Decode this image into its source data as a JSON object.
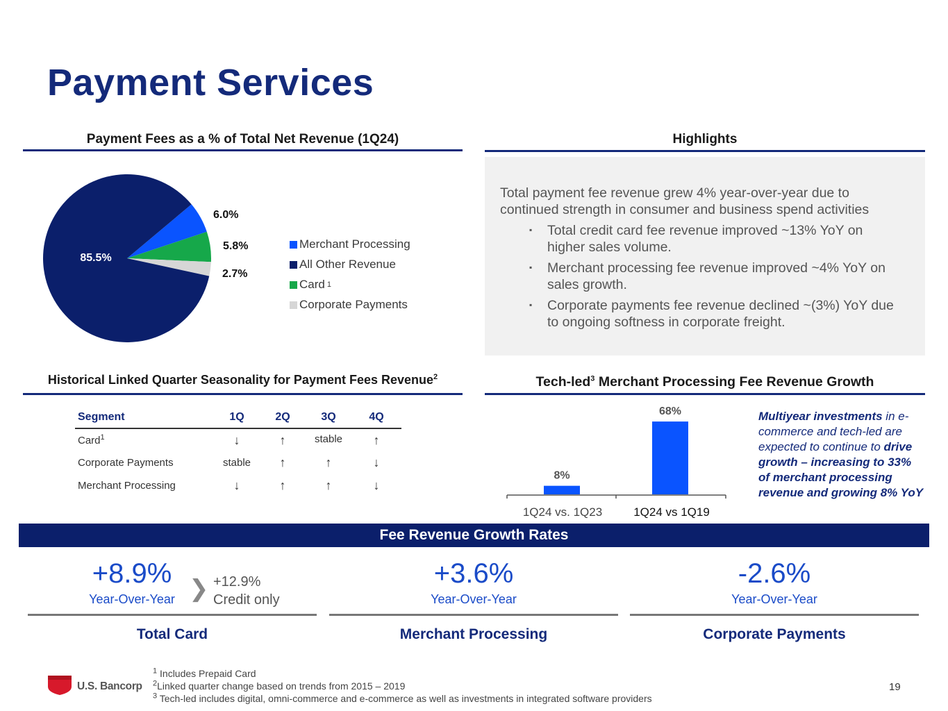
{
  "page": {
    "title": "Payment Services",
    "page_number": "19",
    "logo_text": "U.S. Bancorp"
  },
  "pie_section": {
    "heading": "Payment Fees as a % of Total Net Revenue (1Q24)"
  },
  "highlights": {
    "heading": "Highlights",
    "intro": [
      "Total payment fee revenue grew 4% year-over-year due to",
      "continued strength in consumer and business spend activities"
    ],
    "bullets": [
      [
        "Total credit card fee revenue improved ~13% YoY on",
        "higher sales volume."
      ],
      [
        "Merchant processing fee revenue improved ~4% YoY on",
        "sales growth."
      ],
      [
        "Corporate payments fee revenue declined ~(3%) YoY due",
        "to ongoing softness in corporate freight."
      ]
    ]
  },
  "seasonality": {
    "heading": "Historical Linked Quarter Seasonality for  Payment Fees Revenue",
    "heading_sup": "2",
    "columns": [
      "Segment",
      "1Q",
      "2Q",
      "3Q",
      "4Q"
    ],
    "rows": [
      {
        "segment": "Card",
        "sup": "1",
        "q1": "↓",
        "q2": "↑",
        "q3": "stable",
        "q4": "↑"
      },
      {
        "segment": "Corporate Payments",
        "sup": "",
        "q1": "stable",
        "q2": "↑",
        "q3": "↑",
        "q4": "↓"
      },
      {
        "segment": "Merchant Processing",
        "sup": "",
        "q1": "↓",
        "q2": "↑",
        "q3": "↑",
        "q4": "↓"
      }
    ]
  },
  "tech_section": {
    "heading_pre": "Tech-led",
    "heading_sup": "3",
    "heading_post": " Merchant Processing Fee Revenue Growth",
    "callout": {
      "p1_bold": "Multiyear investments",
      "p1_rest": " in e-commerce and tech-led are expected to continue to ",
      "p2_bold": "drive growth – increasing to 33% of merchant processing revenue and growing 8% YoY"
    }
  },
  "banner": {
    "label": "Fee Revenue Growth Rates"
  },
  "growth": {
    "card": {
      "value": "+8.9%",
      "yoy": "Year-Over-Year",
      "credit_value": "+12.9%",
      "credit_label": "Credit only",
      "name": "Total Card",
      "chevron": "❯"
    },
    "merchant": {
      "value": "+3.6%",
      "yoy": "Year-Over-Year",
      "name": "Merchant Processing"
    },
    "corporate": {
      "value": "-2.6%",
      "yoy": "Year-Over-Year",
      "name": "Corporate Payments"
    }
  },
  "footnotes": [
    {
      "num": "1",
      "text": "Includes Prepaid Card"
    },
    {
      "num": "2",
      "text": "Linked quarter change based on trends from 2015 – 2019"
    },
    {
      "num": "3",
      "text": "Tech-led includes digital, omni-commerce and e-commerce as well as investments in integrated software providers"
    }
  ],
  "chart_data": [
    {
      "type": "pie",
      "slices": [
        {
          "name": "All Other Revenue",
          "value": 85.5,
          "label": "85.5%",
          "color": "#0b1f6b"
        },
        {
          "name": "Merchant Processing",
          "value": 6.0,
          "label": "6.0%",
          "color": "#0a54ff"
        },
        {
          "name": "Card",
          "value": 5.8,
          "label": "5.8%",
          "color": "#16a84a"
        },
        {
          "name": "Corporate Payments",
          "value": 2.7,
          "label": "2.7%",
          "color": "#d6d6d6"
        }
      ],
      "legend": [
        {
          "name": "Merchant Processing",
          "sup": "",
          "color": "#0a54ff"
        },
        {
          "name": "All Other Revenue",
          "sup": "",
          "color": "#0b1f6b"
        },
        {
          "name": "Card",
          "sup": "1",
          "color": "#16a84a"
        },
        {
          "name": "Corporate Payments",
          "sup": "",
          "color": "#d6d6d6"
        }
      ],
      "legend_position": "right"
    },
    {
      "type": "bar",
      "categories": [
        "1Q24 vs. 1Q23",
        "1Q24 vs 1Q19"
      ],
      "values": [
        8,
        68
      ],
      "labels": [
        "8%",
        "68%"
      ],
      "ylim": [
        0,
        70
      ],
      "color": "#0a54ff"
    }
  ]
}
